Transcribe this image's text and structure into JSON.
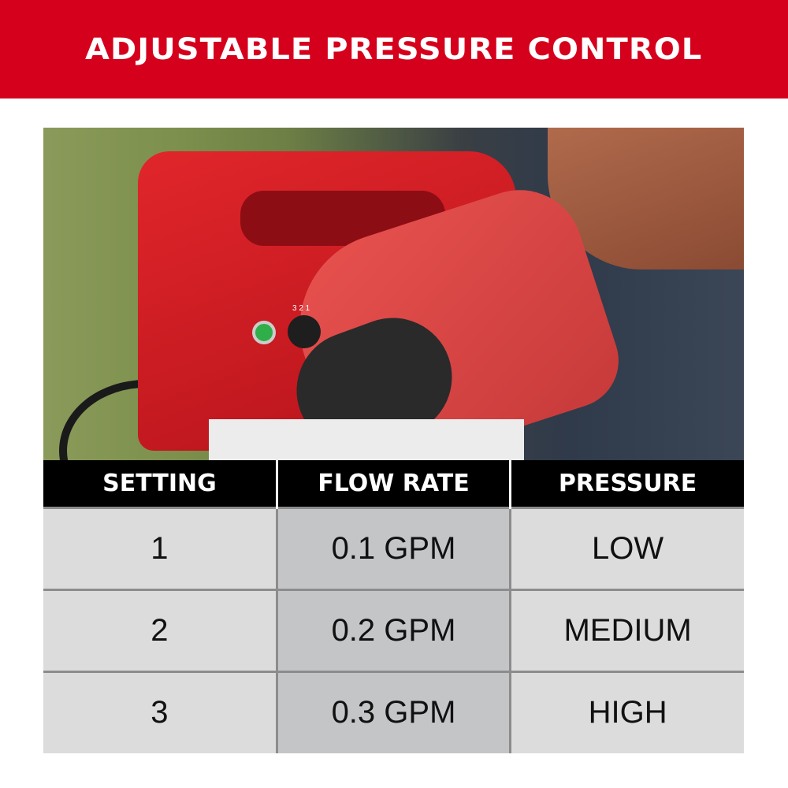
{
  "banner": {
    "title": "ADJUSTABLE PRESSURE CONTROL",
    "color": "#d5001c"
  },
  "photo": {
    "dial_numbers": "3 2 1"
  },
  "table": {
    "headers": [
      "SETTING",
      "FLOW RATE",
      "PRESSURE"
    ],
    "rows": [
      {
        "setting": "1",
        "flow_rate": "0.1 GPM",
        "pressure": "LOW"
      },
      {
        "setting": "2",
        "flow_rate": "0.2 GPM",
        "pressure": "MEDIUM"
      },
      {
        "setting": "3",
        "flow_rate": "0.3 GPM",
        "pressure": "HIGH"
      }
    ]
  }
}
